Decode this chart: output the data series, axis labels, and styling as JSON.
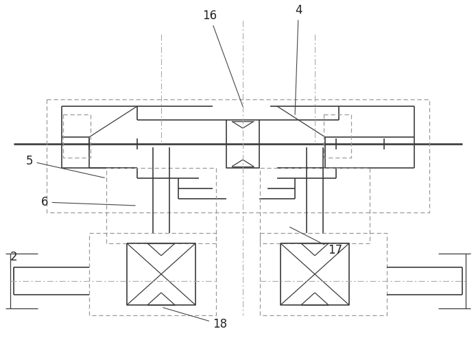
{
  "bg_color": "#ffffff",
  "line_color": "#3a3a3a",
  "dash_color": "#999999",
  "center_color": "#aaaaaa",
  "figsize": [
    6.94,
    4.99
  ],
  "dpi": 100
}
